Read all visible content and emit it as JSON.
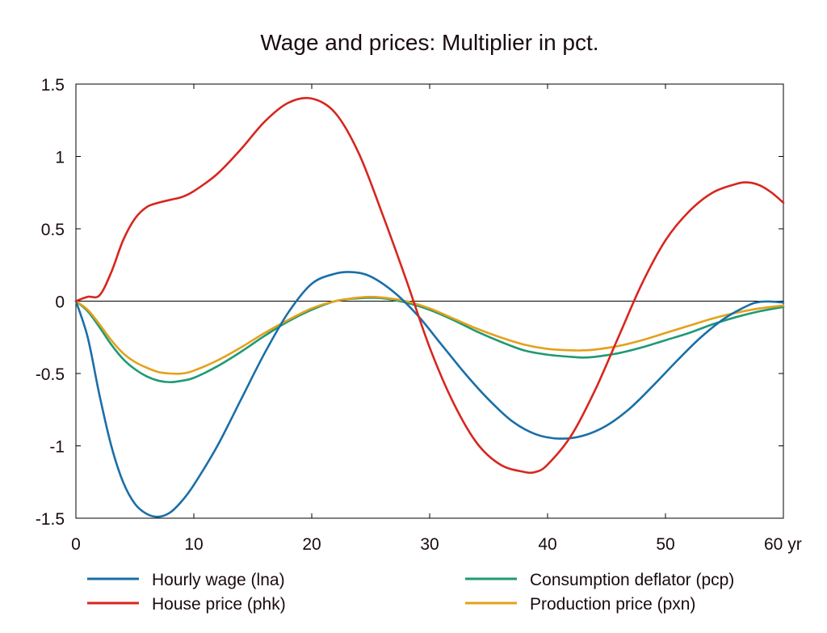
{
  "chart_data": {
    "type": "line",
    "title": "Wage and prices: Multiplier in pct.",
    "x_unit_label": "yr",
    "xlim": [
      0,
      60
    ],
    "ylim": [
      -1.5,
      1.5
    ],
    "x_ticks": [
      0,
      10,
      20,
      30,
      40,
      50,
      60
    ],
    "x_tick_labels": [
      "0",
      "10",
      "20",
      "30",
      "40",
      "50",
      "60 yr"
    ],
    "y_ticks": [
      1.5,
      1,
      0.5,
      0,
      -0.5,
      -1,
      -1.5
    ],
    "y_tick_labels": [
      "1.5",
      "1",
      "0.5",
      "0",
      "-0.5",
      "-1",
      "-1.5"
    ],
    "zero_line": true,
    "grid": false,
    "legend_placement": "bottom",
    "series": [
      {
        "name": "Hourly wage (lna)",
        "color": "#1a6fa8",
        "x": [
          0,
          1,
          2,
          3,
          4,
          5,
          6,
          7,
          8,
          9,
          10,
          12,
          14,
          16,
          18,
          20,
          22,
          23.5,
          25,
          27,
          29,
          31,
          33,
          35,
          37,
          39,
          41,
          43,
          45,
          47,
          49,
          51,
          53,
          55,
          57,
          58,
          59,
          60
        ],
        "y": [
          0,
          -0.25,
          -0.65,
          -1.0,
          -1.25,
          -1.4,
          -1.47,
          -1.49,
          -1.46,
          -1.38,
          -1.27,
          -1.0,
          -0.68,
          -0.36,
          -0.08,
          0.12,
          0.19,
          0.2,
          0.17,
          0.06,
          -0.1,
          -0.3,
          -0.5,
          -0.68,
          -0.83,
          -0.92,
          -0.95,
          -0.93,
          -0.86,
          -0.74,
          -0.58,
          -0.41,
          -0.25,
          -0.12,
          -0.03,
          -0.005,
          -0.003,
          -0.01
        ]
      },
      {
        "name": "House price (phk)",
        "color": "#d7261e",
        "x": [
          0,
          1,
          2,
          3,
          4,
          5,
          6,
          7,
          8,
          9,
          10,
          12,
          14,
          16,
          18,
          20,
          22,
          24,
          26,
          28,
          30,
          32,
          34,
          36,
          38,
          39,
          40,
          42,
          44,
          46,
          48,
          50,
          52,
          54,
          56,
          57,
          58,
          59,
          60
        ],
        "y": [
          0,
          0.03,
          0.04,
          0.2,
          0.42,
          0.57,
          0.65,
          0.68,
          0.7,
          0.72,
          0.76,
          0.88,
          1.05,
          1.24,
          1.37,
          1.4,
          1.3,
          1.02,
          0.6,
          0.15,
          -0.32,
          -0.7,
          -0.98,
          -1.13,
          -1.18,
          -1.18,
          -1.13,
          -0.93,
          -0.62,
          -0.25,
          0.12,
          0.42,
          0.62,
          0.75,
          0.81,
          0.82,
          0.8,
          0.75,
          0.68
        ]
      },
      {
        "name": "Consumption deflator (pcp)",
        "color": "#1e9a74",
        "x": [
          0,
          1,
          2,
          3,
          4,
          5,
          6,
          7,
          8,
          9,
          10,
          12,
          14,
          16,
          18,
          20,
          22,
          24,
          26,
          28,
          30,
          32,
          34,
          36,
          38,
          40,
          42,
          43,
          44,
          46,
          48,
          50,
          52,
          54,
          56,
          58,
          60
        ],
        "y": [
          0,
          -0.07,
          -0.18,
          -0.3,
          -0.4,
          -0.47,
          -0.52,
          -0.55,
          -0.56,
          -0.55,
          -0.53,
          -0.45,
          -0.35,
          -0.24,
          -0.14,
          -0.06,
          0.0,
          0.02,
          0.02,
          -0.01,
          -0.06,
          -0.13,
          -0.21,
          -0.28,
          -0.34,
          -0.37,
          -0.385,
          -0.39,
          -0.385,
          -0.36,
          -0.32,
          -0.27,
          -0.22,
          -0.16,
          -0.11,
          -0.07,
          -0.04
        ]
      },
      {
        "name": "Production price (pxn)",
        "color": "#e4a11b",
        "x": [
          0,
          1,
          2,
          3,
          4,
          5,
          6,
          7,
          8,
          9,
          10,
          12,
          14,
          16,
          18,
          20,
          22,
          24,
          25,
          26,
          28,
          30,
          32,
          34,
          36,
          38,
          40,
          42,
          43,
          44,
          46,
          48,
          50,
          52,
          54,
          56,
          58,
          60
        ],
        "y": [
          0,
          -0.06,
          -0.16,
          -0.27,
          -0.36,
          -0.42,
          -0.46,
          -0.49,
          -0.5,
          -0.5,
          -0.48,
          -0.41,
          -0.32,
          -0.22,
          -0.13,
          -0.05,
          0.0,
          0.025,
          0.03,
          0.025,
          0.0,
          -0.05,
          -0.12,
          -0.19,
          -0.25,
          -0.3,
          -0.33,
          -0.34,
          -0.34,
          -0.335,
          -0.31,
          -0.27,
          -0.22,
          -0.17,
          -0.12,
          -0.08,
          -0.05,
          -0.03
        ]
      }
    ]
  }
}
